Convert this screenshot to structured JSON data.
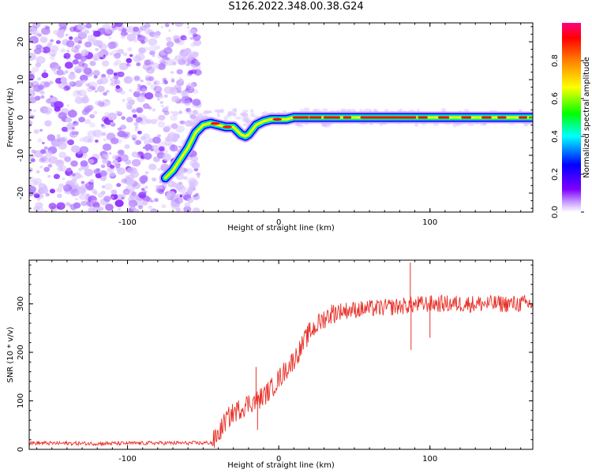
{
  "page_title": "S126.2022.348.00.38.G24",
  "chart_data": [
    {
      "type": "heatmap",
      "title": "S126.2022.348.00.38.G24",
      "xlabel": "Height of straight line (km)",
      "ylabel": "Frequency (Hz)",
      "xlim": [
        -165,
        168
      ],
      "ylim": [
        -25,
        25
      ],
      "x_ticks": [
        -100,
        0,
        100
      ],
      "y_ticks": [
        -20,
        -10,
        0,
        10,
        20
      ],
      "colorbar": {
        "label": "Normalized spectral amplitude",
        "range": [
          0,
          1
        ],
        "ticks": [
          "0.0",
          "0.2",
          "0.4",
          "0.6",
          "0.8"
        ],
        "colors": [
          "#ffffff",
          "#8000ff",
          "#0000ff",
          "#00ffff",
          "#00ff00",
          "#ffff00",
          "#ff8000",
          "#ff0000",
          "#ff0080"
        ]
      },
      "noise_region_x": [
        -165,
        -55
      ],
      "ridge": {
        "x": [
          -75,
          -70,
          -65,
          -60,
          -55,
          -50,
          -45,
          -40,
          -35,
          -30,
          -25,
          -22,
          -20,
          -15,
          -10,
          -5,
          0,
          5,
          10,
          20,
          40,
          60,
          80,
          100,
          120,
          140,
          168
        ],
        "y": [
          -16,
          -14,
          -11,
          -8,
          -4,
          -2,
          -1.5,
          -2,
          -2.5,
          -2.5,
          -4.5,
          -5,
          -4.5,
          -2,
          -1,
          -0.5,
          -0.5,
          -0.5,
          0,
          0,
          0,
          0,
          0,
          0,
          0,
          0,
          0
        ]
      }
    },
    {
      "type": "line",
      "xlabel": "Height of straight line (km)",
      "ylabel": "SNR (10 * v/v)",
      "xlim": [
        -165,
        168
      ],
      "ylim": [
        0,
        390
      ],
      "x_ticks": [
        -100,
        0,
        100
      ],
      "y_ticks": [
        0,
        100,
        200,
        300
      ],
      "color": "#e8322a",
      "envelope": {
        "x": [
          -165,
          -120,
          -80,
          -50,
          -44,
          -40,
          -35,
          -30,
          -25,
          -20,
          -15,
          -10,
          -5,
          0,
          5,
          10,
          15,
          20,
          25,
          30,
          35,
          40,
          50,
          60,
          70,
          80,
          90,
          100,
          120,
          140,
          168
        ],
        "y": [
          13,
          12,
          13,
          13,
          14,
          30,
          60,
          75,
          85,
          95,
          100,
          110,
          125,
          145,
          165,
          185,
          210,
          240,
          255,
          270,
          280,
          285,
          288,
          290,
          292,
          295,
          298,
          300,
          300,
          300,
          300
        ]
      },
      "spikes": [
        {
          "x": -15,
          "y": 170
        },
        {
          "x": -14,
          "y": 40
        },
        {
          "x": 87,
          "y": 385
        },
        {
          "x": 87.5,
          "y": 205
        },
        {
          "x": 100,
          "y": 230
        }
      ]
    }
  ]
}
